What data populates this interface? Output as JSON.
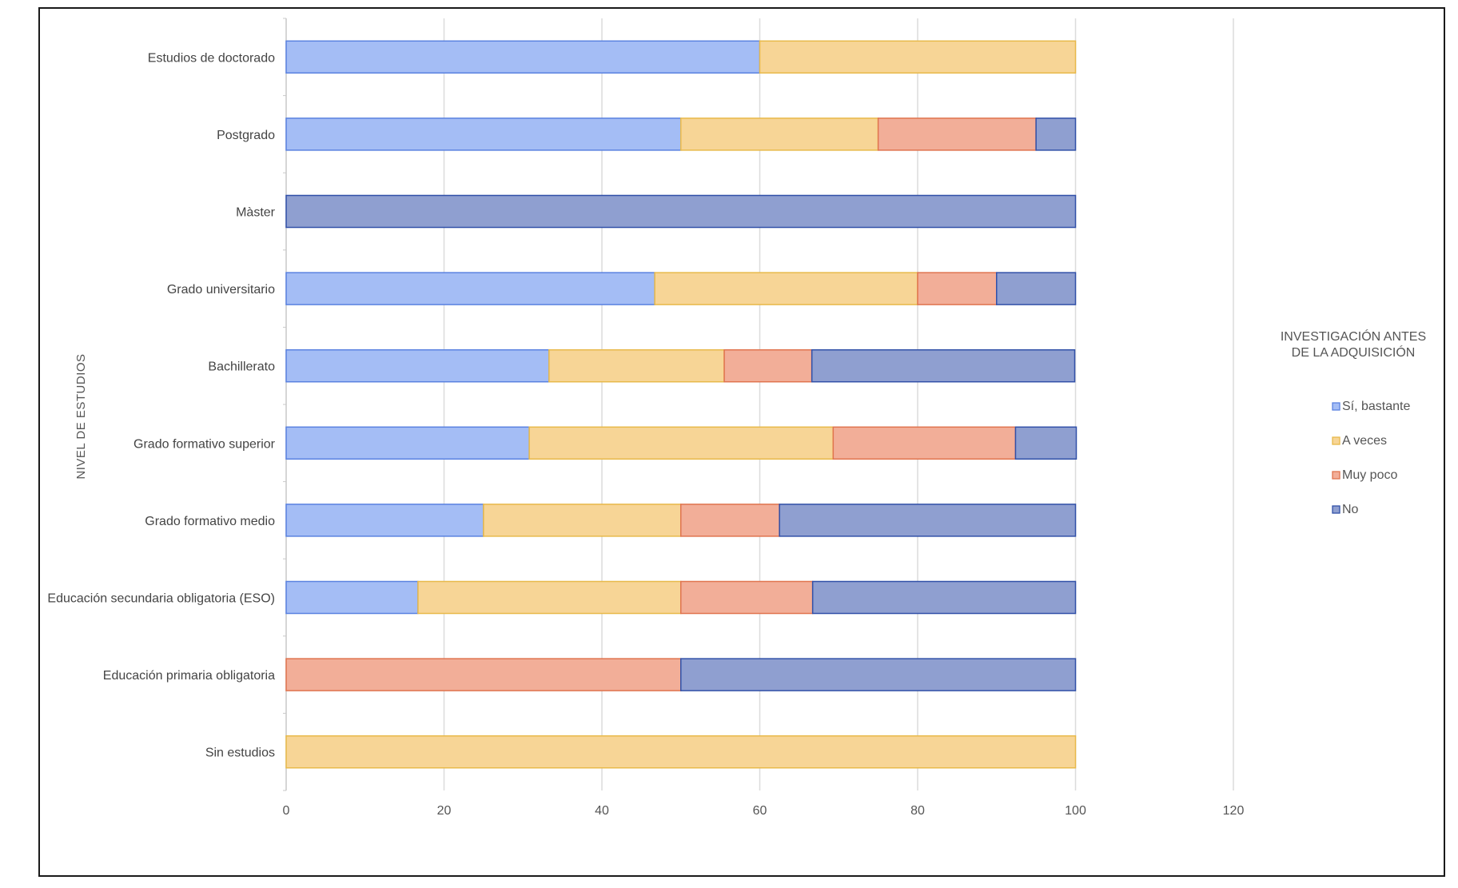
{
  "chart_data": {
    "type": "bar",
    "orientation": "horizontal",
    "stacked": true,
    "ylabel": "NIVEL DE ESTUDIOS",
    "xlabel": "",
    "xlim": [
      0,
      120
    ],
    "xticks": [
      "0",
      "20",
      "40",
      "60",
      "80",
      "100",
      "120"
    ],
    "grid": true,
    "legend": {
      "title_lines": [
        "INVESTIGACIÓN ANTES",
        "DE LA ADQUISICIÓN"
      ],
      "placement": "right"
    },
    "categories": [
      "Estudios de doctorado",
      "Postgrado",
      "Màster",
      "Grado universitario",
      "Bachillerato",
      "Grado formativo superior",
      "Grado formativo medio",
      "Educación secundaria obligatoria (ESO)",
      "Educación primaria obligatoria",
      "Sin estudios"
    ],
    "series": [
      {
        "name": "Sí, bastante",
        "color": "#a4bdf5",
        "stroke": "#5a82e0",
        "values": [
          60,
          50,
          0,
          46.7,
          33.3,
          30.8,
          25,
          16.7,
          0,
          0
        ]
      },
      {
        "name": "A veces",
        "color": "#f7d596",
        "stroke": "#e8b94a",
        "values": [
          40,
          25,
          0,
          33.3,
          22.2,
          38.5,
          25,
          33.3,
          0,
          100
        ]
      },
      {
        "name": "Muy poco",
        "color": "#f2ae98",
        "stroke": "#e0744f",
        "values": [
          0,
          20,
          0,
          10,
          11.1,
          23.1,
          12.5,
          16.7,
          50,
          0
        ]
      },
      {
        "name": "No",
        "color": "#8f9fd0",
        "stroke": "#3150a8",
        "values": [
          0,
          5,
          100,
          10,
          33.3,
          7.7,
          37.5,
          33.3,
          50,
          0
        ]
      }
    ]
  }
}
